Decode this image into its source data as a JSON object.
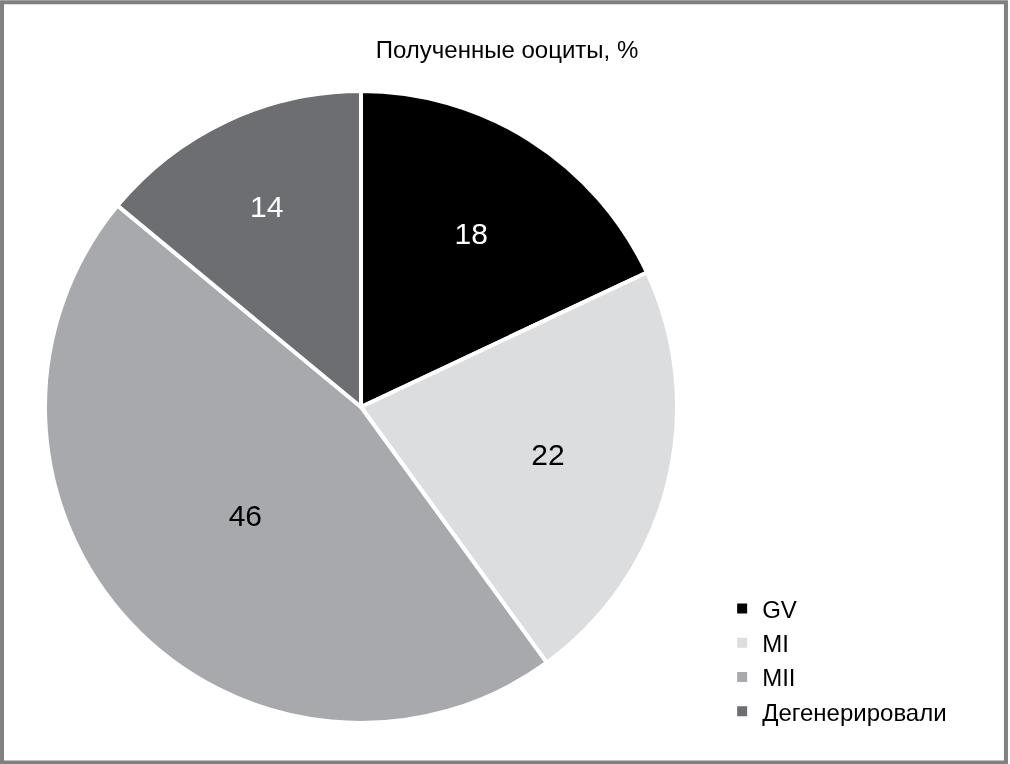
{
  "chart_data": {
    "type": "pie",
    "title": "Полученные ооциты, %",
    "categories": [
      "GV",
      "MI",
      "MII",
      "Дегенерировали"
    ],
    "values": [
      18,
      22,
      46,
      14
    ],
    "colors": [
      "#000000",
      "#dcddde",
      "#a7a9ac",
      "#6d6e71"
    ],
    "data_labels": true,
    "legend": "bottom right"
  }
}
